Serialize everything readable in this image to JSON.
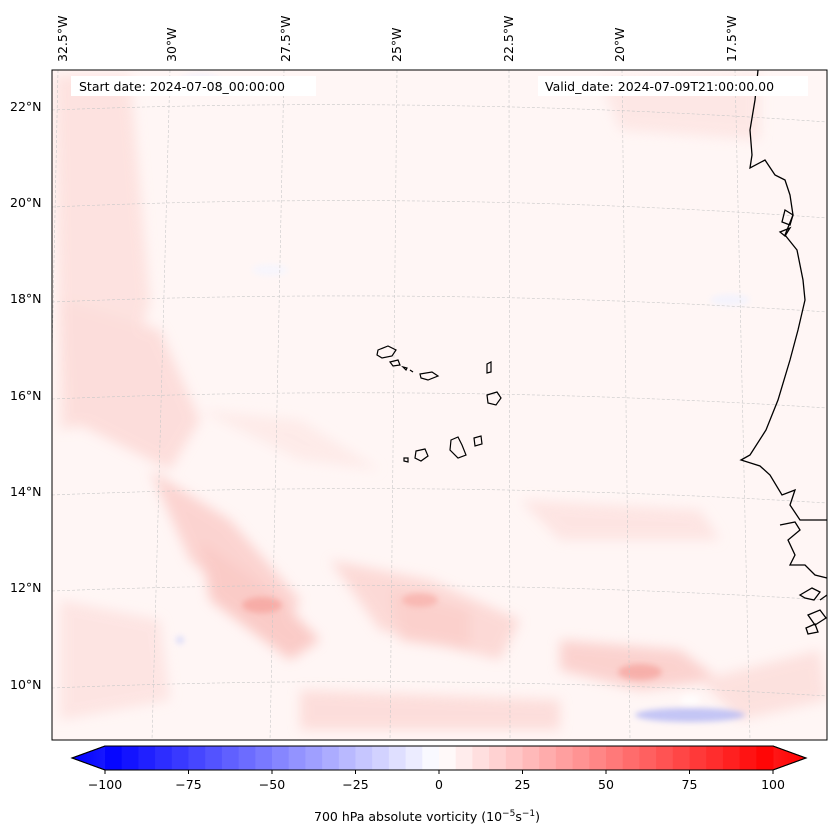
{
  "header": {
    "start_date": "Start date: 2024-07-08_00:00:00",
    "valid_date": "Valid_date: 2024-07-09T21:00:00.00"
  },
  "longitude_labels": [
    "32.5°W",
    "30°W",
    "27.5°W",
    "25°W",
    "22.5°W",
    "20°W",
    "17.5°W"
  ],
  "latitude_labels": [
    "22°N",
    "20°N",
    "18°N",
    "16°N",
    "14°N",
    "12°N",
    "10°N"
  ],
  "colorbar": {
    "ticks": [
      "−100",
      "−75",
      "−50",
      "−25",
      "0",
      "25",
      "50",
      "75",
      "100"
    ],
    "label": "700 hPa absolute vorticity (10",
    "label_exp1": "−5",
    "label_mid": "s",
    "label_exp2": "−1",
    "label_end": ")",
    "range": [
      -100,
      100
    ],
    "colors": {
      "negative": "#0000ff",
      "zero": "#ffffff",
      "positive": "#ff0000"
    }
  },
  "map": {
    "field": "700 hPa absolute vorticity",
    "coastline_color": "#000000",
    "gridline_color": "#bbbbbb"
  }
}
